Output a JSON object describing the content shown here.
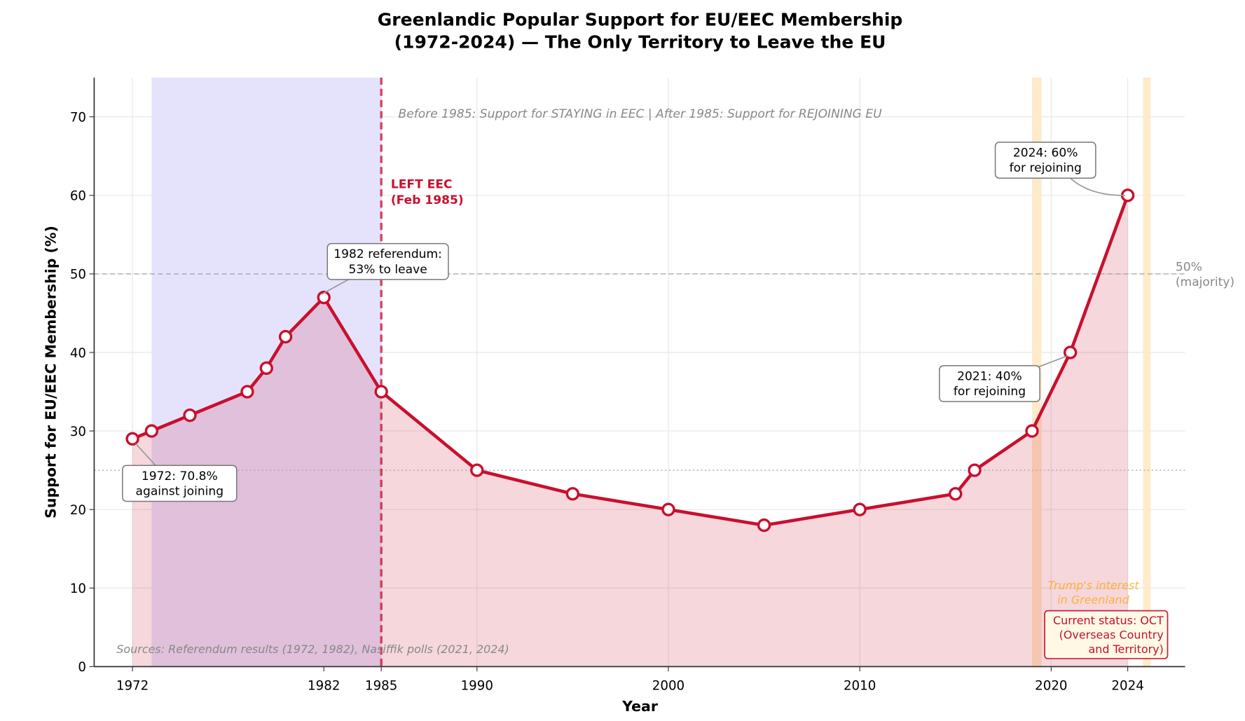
{
  "chart_data": {
    "type": "line",
    "title": "Greenlandic Popular Support for EU/EEC Membership",
    "title_line2": "(1972-2024) — The Only Territory to Leave the EU",
    "xlabel": "Year",
    "ylabel": "Support for EU/EEC Membership (%)",
    "xlim": [
      1970,
      2027
    ],
    "ylim": [
      0,
      75
    ],
    "grid": true,
    "x_ticks": [
      1972,
      1982,
      1985,
      1990,
      2000,
      2010,
      2020,
      2024
    ],
    "y_ticks": [
      0,
      10,
      20,
      30,
      40,
      50,
      60,
      70
    ],
    "series": [
      {
        "x": [
          1972,
          1973,
          1975,
          1978,
          1979,
          1980,
          1982,
          1985,
          1990,
          1995,
          2000,
          2005,
          2010,
          2015,
          2016,
          2019,
          2021,
          2024
        ],
        "y": [
          29,
          30,
          32,
          35,
          38,
          42,
          47,
          35,
          25,
          22,
          20,
          18,
          20,
          22,
          25,
          30,
          40,
          60
        ],
        "color": "#c8102e"
      }
    ],
    "shaded_regions": [
      {
        "x": [
          1973,
          1985
        ],
        "color": "#e4e2fc"
      },
      {
        "x": [
          2019,
          2019.5
        ],
        "color": "#ffe8c4"
      },
      {
        "x": [
          2024.8,
          2025.2
        ],
        "color": "#ffe8c4"
      }
    ],
    "reference_lines": {
      "majority": {
        "y": 50,
        "label": "50%",
        "label2": "(majority)"
      },
      "dotted": {
        "y": 25
      },
      "left_eec": {
        "x": 1985,
        "label": "LEFT EEC",
        "label2": "(Feb 1985)"
      }
    },
    "subtitle_note": "Before 1985: Support for STAYING in EEC  |  After 1985: Support for REJOINING EU",
    "annotations": [
      {
        "x": 1972,
        "y": 29,
        "line1": "1972: 70.8%",
        "line2": "against joining"
      },
      {
        "x": 1982,
        "y": 47,
        "line1": "1982 referendum:",
        "line2": "53% to leave"
      },
      {
        "x": 2021,
        "y": 40,
        "line1": "2021: 40%",
        "line2": "for rejoining"
      },
      {
        "x": 2024,
        "y": 60,
        "line1": "2024: 60%",
        "line2": "for rejoining"
      }
    ],
    "trump_note": {
      "line1": "Trump's interest",
      "line2": "in Greenland"
    },
    "status_box": {
      "line1": "Current status: OCT",
      "line2": "(Overseas Country",
      "line3": "and Territory)"
    },
    "sources": "Sources: Referendum results (1972, 1982), Nasiffik polls (2021, 2024)"
  }
}
